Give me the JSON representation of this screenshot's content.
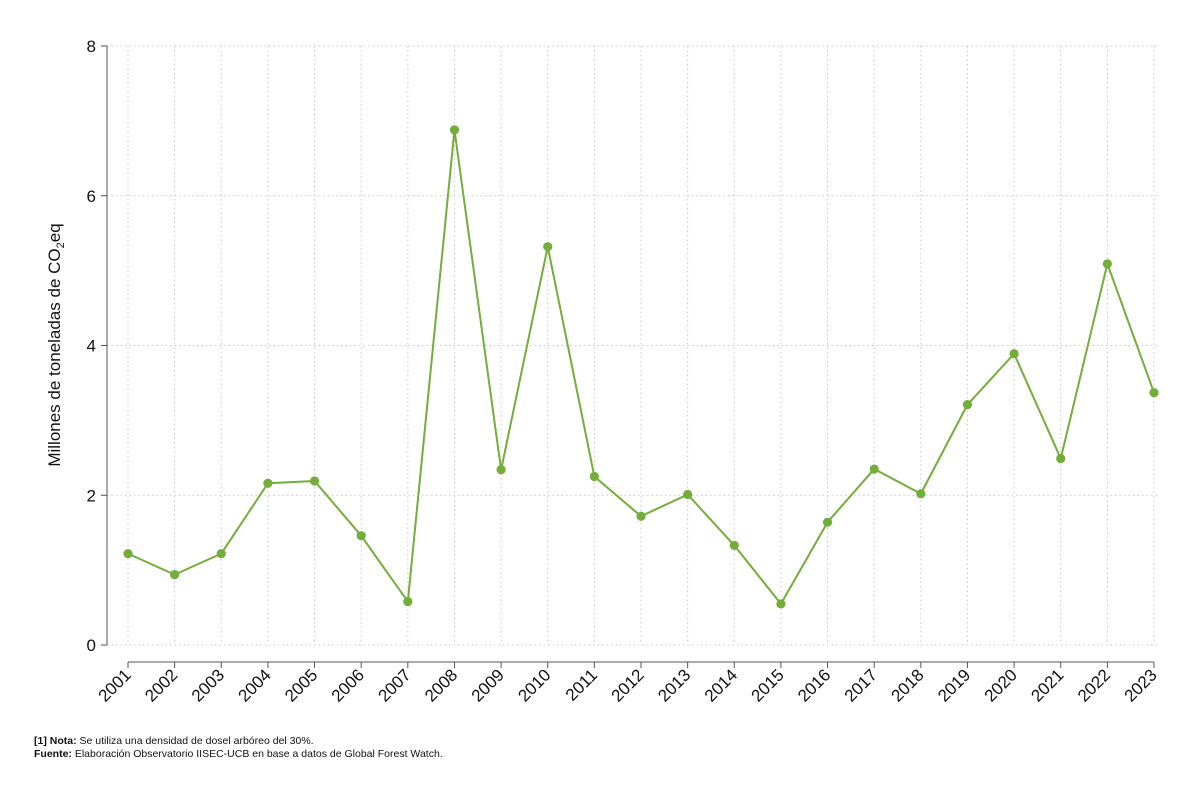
{
  "chart_data": {
    "type": "line",
    "ylabel": {
      "prefix": "Millones de toneladas de CO",
      "subscript": "2",
      "suffix": "eq"
    },
    "ylim": [
      0,
      8
    ],
    "yticks": [
      0,
      2,
      4,
      6,
      8
    ],
    "ytick_labels": [
      "0",
      "2",
      "4",
      "6",
      "8"
    ],
    "grid": true,
    "legend": "none",
    "x": [
      "2001",
      "2002",
      "2003",
      "2004",
      "2005",
      "2006",
      "2007",
      "2008",
      "2009",
      "2010",
      "2011",
      "2012",
      "2013",
      "2014",
      "2015",
      "2016",
      "2017",
      "2018",
      "2019",
      "2020",
      "2021",
      "2022",
      "2023"
    ],
    "series": [
      {
        "values": [
          1.22,
          0.94,
          1.22,
          2.16,
          2.19,
          1.46,
          0.58,
          6.88,
          2.34,
          5.32,
          2.25,
          1.72,
          2.01,
          1.33,
          0.55,
          1.64,
          2.35,
          2.02,
          3.21,
          3.89,
          2.49,
          5.09,
          3.37
        ],
        "color": "#73ad3a"
      }
    ]
  },
  "footnotes": {
    "note_label": "[1] Nota:",
    "note_text": " Se utiliza una densidad de dosel arbóreo del 30%.",
    "source_label": "Fuente:",
    "source_text": " Elaboración Observatorio IISEC-UCB en base a datos de Global Forest Watch."
  },
  "colors": {
    "series": "#73ad3a",
    "grid": "#c8c8c8",
    "axis": "#555555",
    "text": "#111111"
  }
}
